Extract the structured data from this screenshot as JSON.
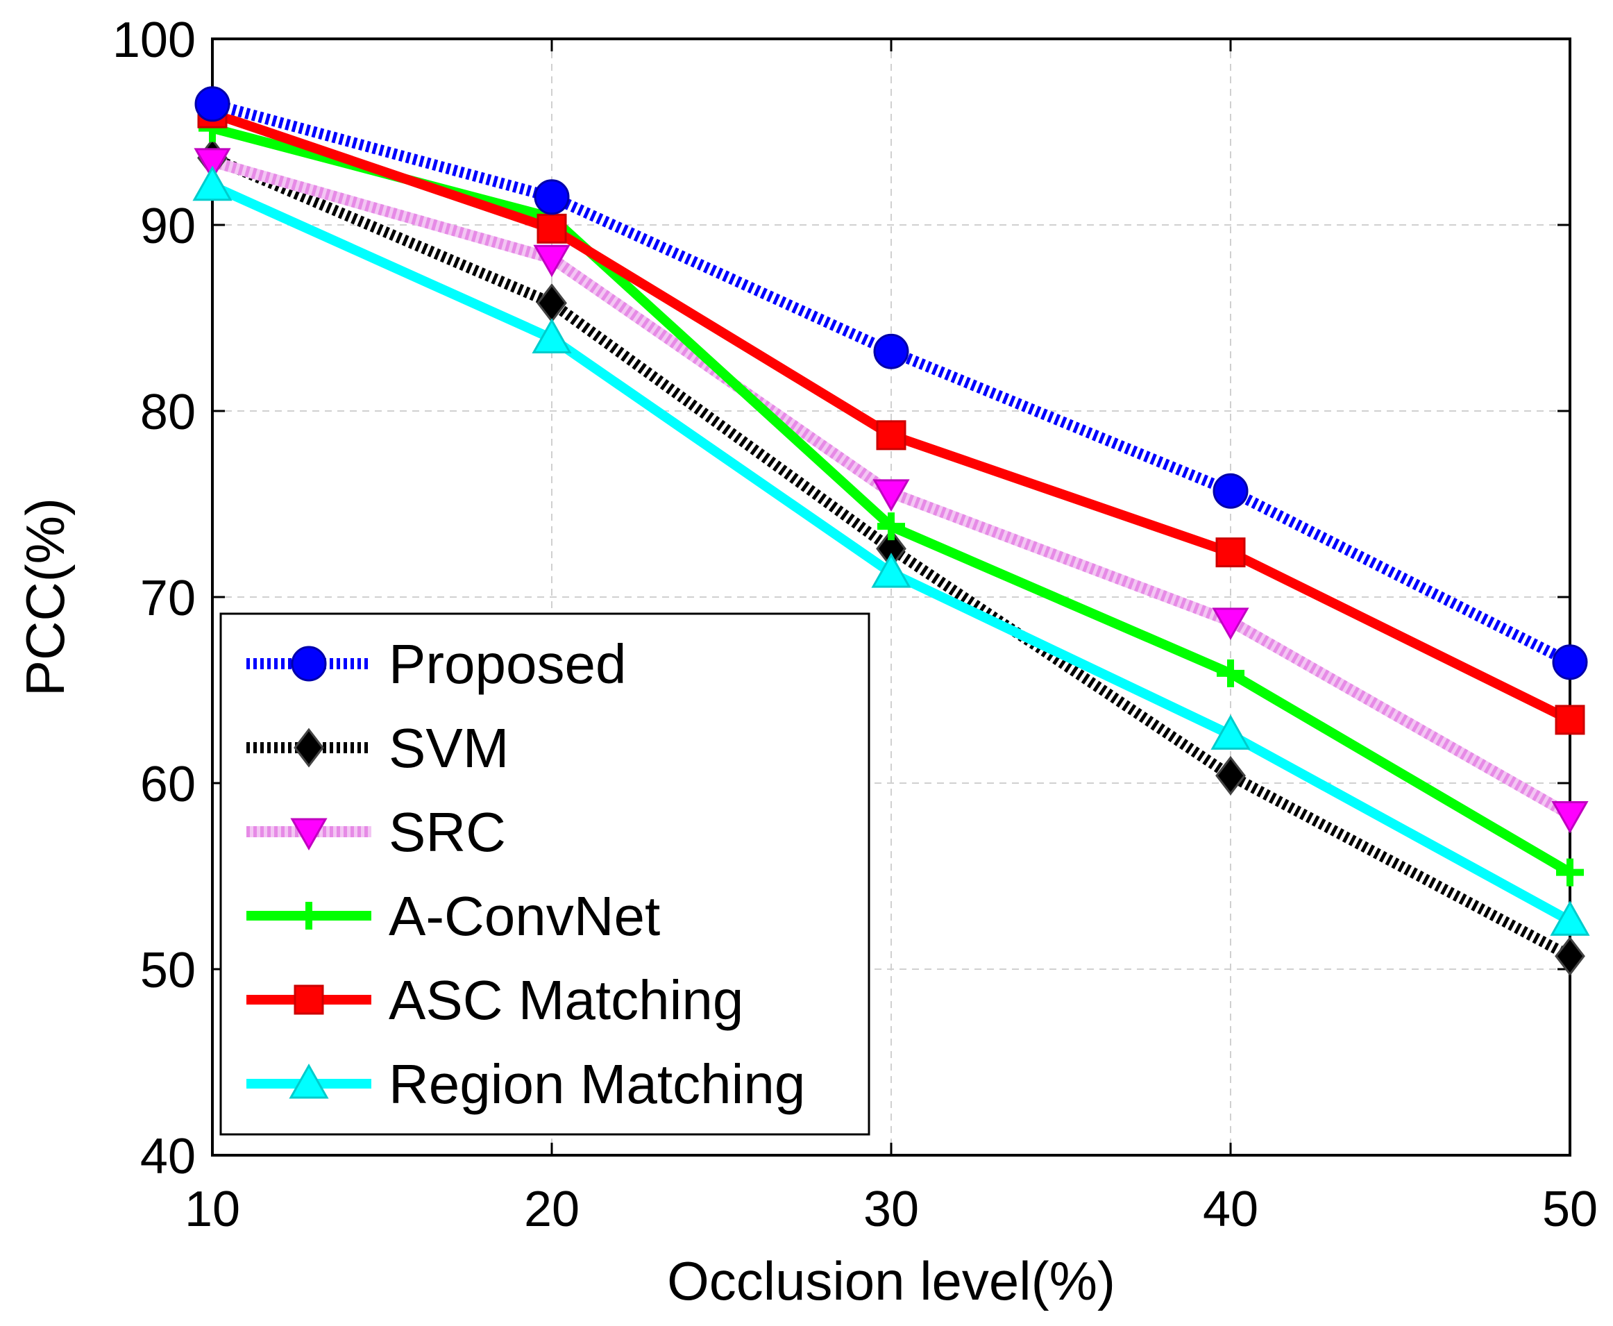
{
  "chart_data": {
    "type": "line",
    "xlabel": "Occlusion level(%)",
    "ylabel": "PCC(%)",
    "x": [
      10,
      20,
      30,
      40,
      50
    ],
    "xlim": [
      10,
      50
    ],
    "ylim": [
      40,
      100
    ],
    "xticks": [
      "10",
      "20",
      "30",
      "40",
      "50"
    ],
    "yticks": [
      "40",
      "50",
      "60",
      "70",
      "80",
      "90",
      "100"
    ],
    "grid": true,
    "legend_position": "bottom-left",
    "series": [
      {
        "name": "Proposed",
        "values": [
          96.5,
          91.5,
          83.2,
          75.7,
          66.5
        ],
        "color": "#0000ff",
        "marker": "circle",
        "style": "dotted"
      },
      {
        "name": "SVM",
        "values": [
          93.6,
          85.8,
          72.6,
          60.4,
          50.7
        ],
        "color": "#000000",
        "marker": "diamond",
        "style": "dotted"
      },
      {
        "name": "SRC",
        "values": [
          93.4,
          88.2,
          75.6,
          68.7,
          58.3
        ],
        "color": "#ff00ff",
        "marker": "triangle-down",
        "style": "dotted-light"
      },
      {
        "name": "A-ConvNet",
        "values": [
          95.2,
          90.4,
          73.8,
          65.9,
          55.2
        ],
        "color": "#00ff00",
        "marker": "plus",
        "style": "solid"
      },
      {
        "name": "ASC Matching",
        "values": [
          96.0,
          89.8,
          78.7,
          72.4,
          63.4
        ],
        "color": "#ff0000",
        "marker": "square",
        "style": "solid"
      },
      {
        "name": "Region Matching",
        "values": [
          92.1,
          83.9,
          71.3,
          62.6,
          52.6
        ],
        "color": "#00ffff",
        "marker": "triangle-up",
        "style": "solid"
      }
    ]
  }
}
